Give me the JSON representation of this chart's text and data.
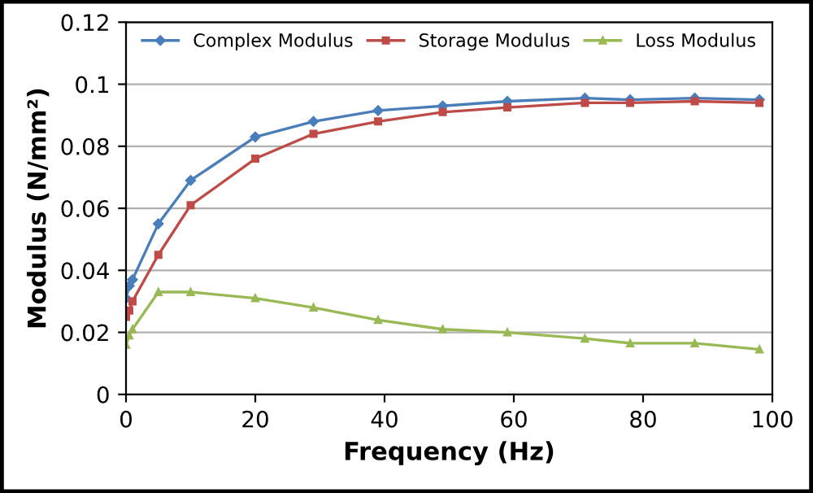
{
  "chart_data": {
    "type": "line",
    "xlabel": "Frequency (Hz)",
    "ylabel": "Modulus (N/mm²)",
    "x": [
      0,
      0.5,
      1,
      5,
      10,
      20,
      29,
      39,
      49,
      59,
      71,
      78,
      88,
      98
    ],
    "series": [
      {
        "name": "Complex Modulus",
        "color": "#4a7ebb",
        "marker": "diamond",
        "values": [
          0.031,
          0.035,
          0.037,
          0.055,
          0.069,
          0.083,
          0.088,
          0.0915,
          0.093,
          0.0945,
          0.0955,
          0.095,
          0.0955,
          0.095
        ]
      },
      {
        "name": "Storage Modulus",
        "color": "#be4b48",
        "marker": "square",
        "values": [
          0.025,
          0.027,
          0.03,
          0.045,
          0.061,
          0.076,
          0.084,
          0.088,
          0.091,
          0.0925,
          0.094,
          0.094,
          0.0945,
          0.094
        ]
      },
      {
        "name": "Loss Modulus",
        "color": "#98b954",
        "marker": "triangle",
        "values": [
          0.016,
          0.019,
          0.021,
          0.033,
          0.033,
          0.031,
          0.028,
          0.024,
          0.021,
          0.02,
          0.018,
          0.0165,
          0.0165,
          0.0145
        ]
      }
    ],
    "xlim": [
      0,
      100
    ],
    "xticks": [
      0,
      20,
      40,
      60,
      80,
      100
    ],
    "ylim": [
      0,
      0.12
    ],
    "yticks": [
      0,
      0.02,
      0.04,
      0.06,
      0.08,
      0.1,
      0.12
    ],
    "grid": "y",
    "legend": "top",
    "line_style": "solid"
  }
}
